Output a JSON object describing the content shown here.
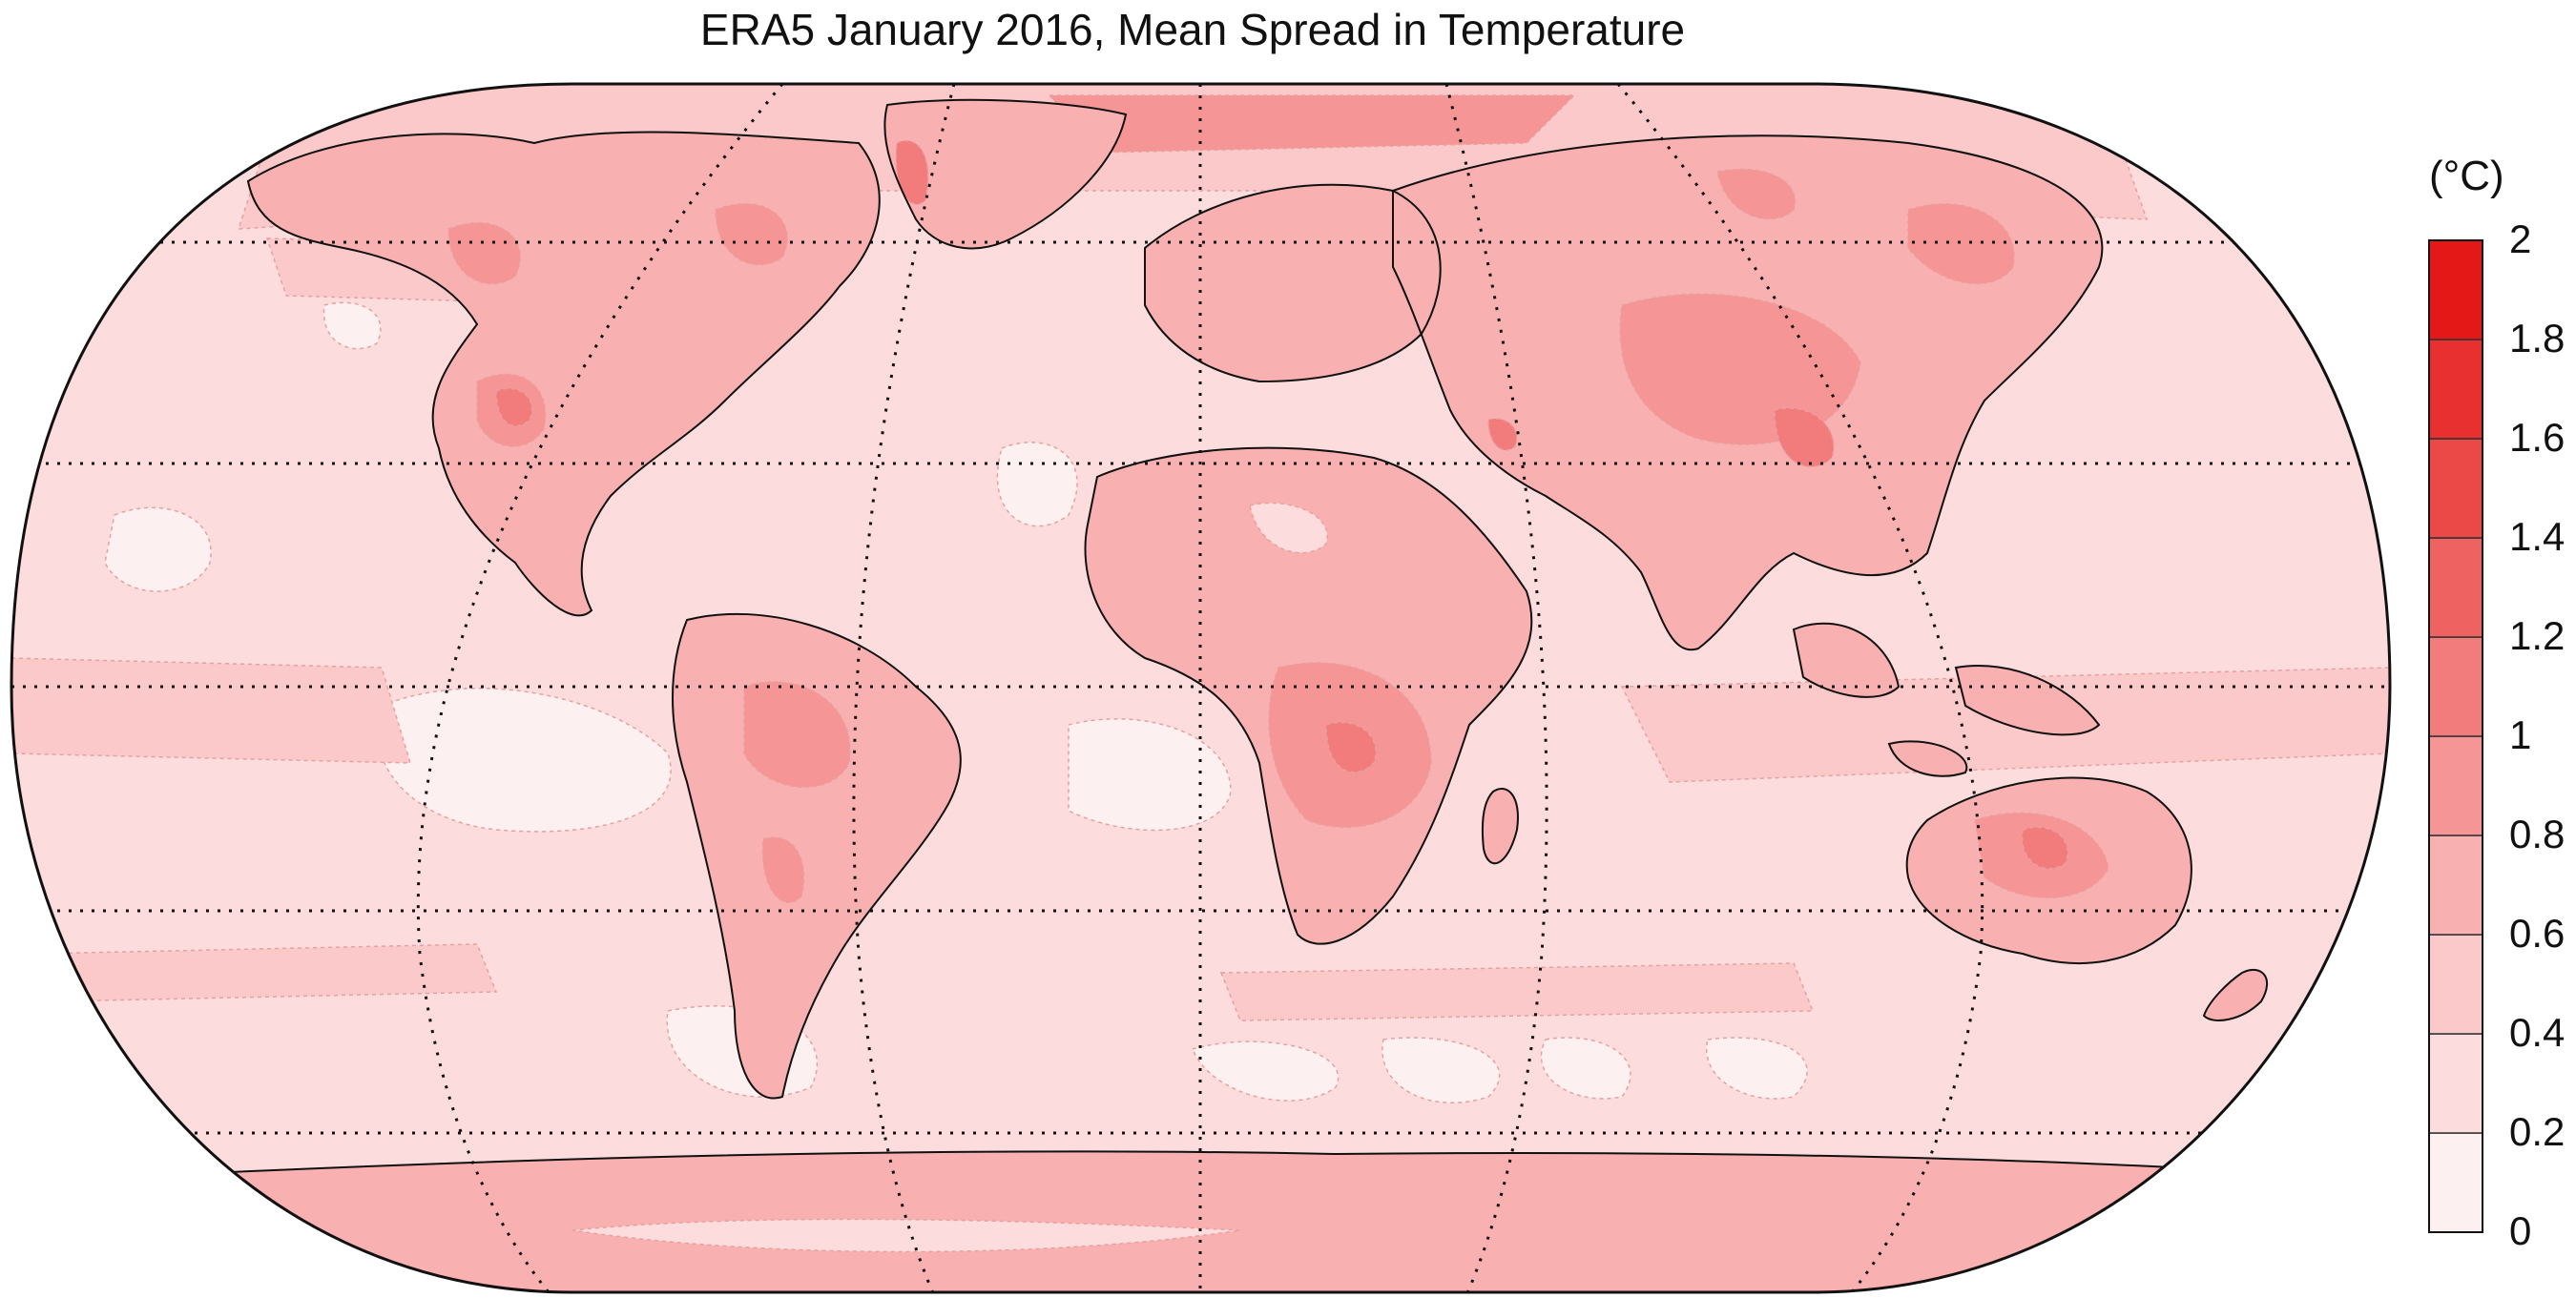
{
  "title": "ERA5 January 2016, Mean Spread in Temperature",
  "colorbar": {
    "unit": "(°C)",
    "levels": [
      "0",
      "0.2",
      "0.4",
      "0.6",
      "0.8",
      "1",
      "1.2",
      "1.4",
      "1.6",
      "1.8",
      "2"
    ],
    "colors": [
      "#fdf0f0",
      "#fcdcdc",
      "#fbc9c9",
      "#f8b0b0",
      "#f59595",
      "#f27c7c",
      "#ef6262",
      "#eb4848",
      "#e83030",
      "#e51818"
    ]
  },
  "colors": {
    "ocean_base": "#fcdcdc",
    "land_base": "#f8b0b0",
    "hotspot": "#f27c7c",
    "low_spread": "#fdf0f0",
    "coastline": "#111111",
    "graticule": "#111111"
  }
}
